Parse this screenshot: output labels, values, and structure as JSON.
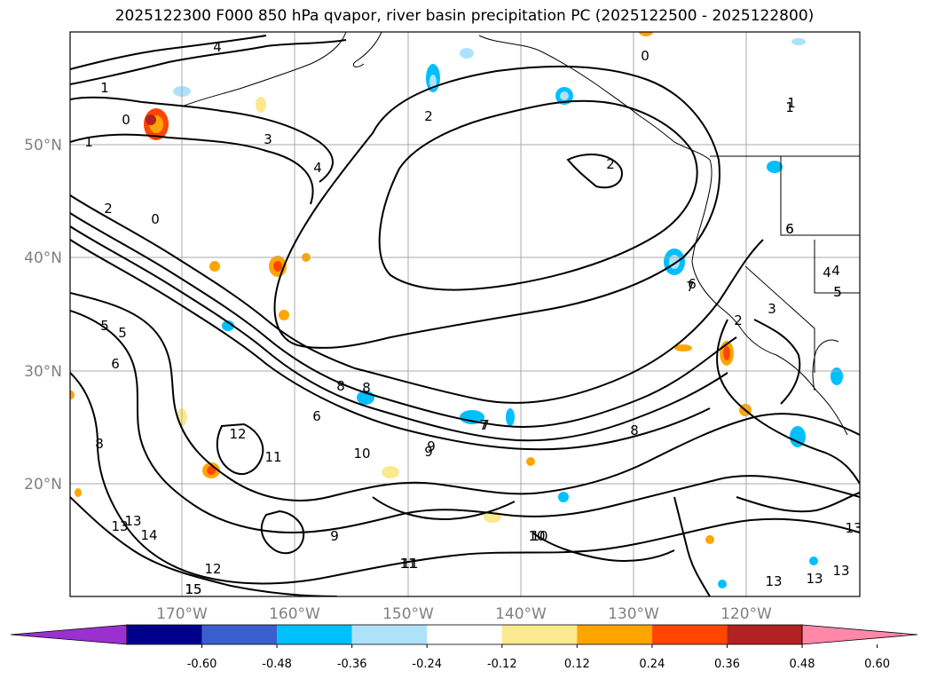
{
  "title": "2025122300 F000 850 hPa qvapor, river basin precipitation PC (2025122500 - 2025122800)",
  "latitude_labels": [
    "50°N",
    "40°N",
    "30°N",
    "20°N"
  ],
  "longitude_labels": [
    "170°W",
    "160°W",
    "150°W",
    "140°W",
    "130°W",
    "120°W"
  ],
  "colorbar": {
    "colors": [
      "#9b30d0",
      "#00008b",
      "#3a5fcd",
      "#00bfff",
      "#aee2fa",
      "#ffffff",
      "#fbe98f",
      "#ffa500",
      "#ff4500",
      "#b22222",
      "#ff88a8"
    ],
    "tick_labels": [
      "-0.60",
      "-0.48",
      "-0.36",
      "-0.24",
      "-0.12",
      "0.12",
      "0.24",
      "0.36",
      "0.48",
      "0.60"
    ]
  },
  "contour_labels": [
    "4",
    "1",
    "0",
    "1",
    "2",
    "3",
    "4",
    "0",
    "2",
    "1",
    "2",
    "0",
    "5",
    "5",
    "6",
    "6",
    "8",
    "6",
    "7",
    "12",
    "10",
    "11",
    "9",
    "8",
    "9",
    "10",
    "11",
    "13",
    "14",
    "15",
    "12",
    "13",
    "8",
    "7",
    "6",
    "5",
    "4",
    "3",
    "2",
    "1",
    "6",
    "4",
    "5",
    "8",
    "9",
    "10",
    "11",
    "13",
    "13",
    "13",
    "13",
    "15",
    "7"
  ],
  "map_style": {
    "contour_color": "#000000",
    "grid_color": "#aaaaaa",
    "label_color": "#808080"
  }
}
